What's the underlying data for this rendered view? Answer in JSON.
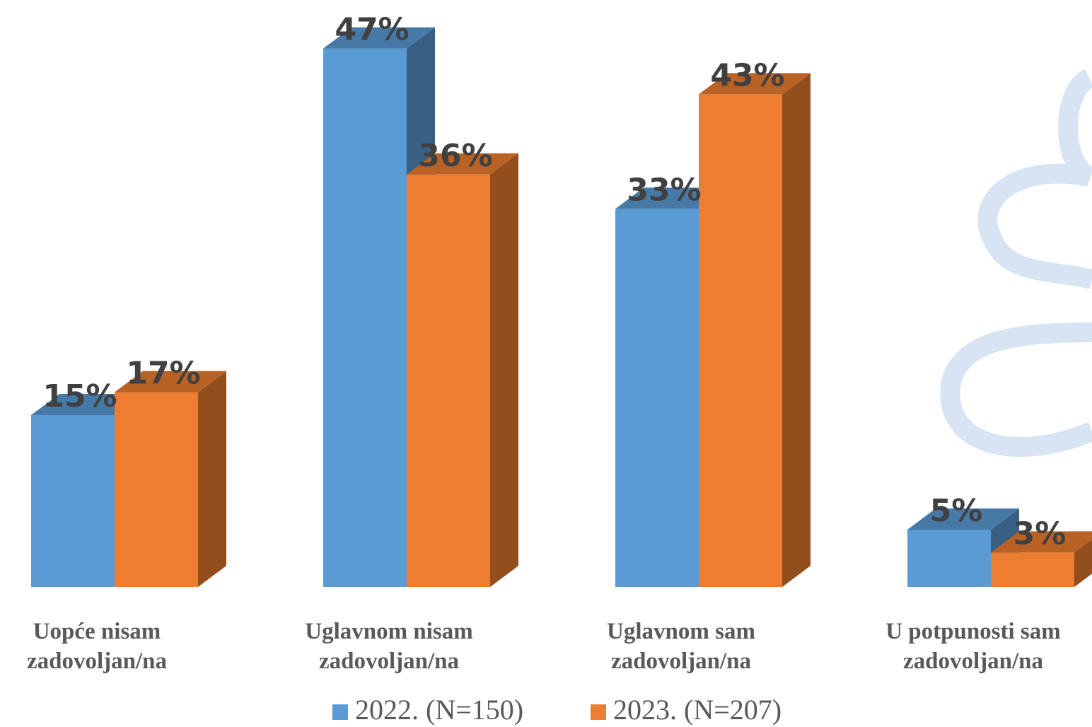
{
  "chart_data": {
    "type": "bar3d",
    "categories": [
      "Uopće nisam zadovoljan/na",
      "Uglavnom nisam zadovoljan/na",
      "Uglavnom sam zadovoljan/na",
      "U potpunosti sam zadovoljan/na"
    ],
    "series": [
      {
        "name": "2022. (N=150)",
        "color": "#5b9bd5",
        "values": [
          15,
          47,
          33,
          5
        ],
        "value_labels": [
          "15%",
          "47%",
          "33%",
          "5%"
        ]
      },
      {
        "name": "2023. (N=207)",
        "color": "#ed7d31",
        "values": [
          17,
          36,
          43,
          3
        ],
        "value_labels": [
          "17%",
          "36%",
          "43%",
          "3%"
        ]
      }
    ]
  }
}
